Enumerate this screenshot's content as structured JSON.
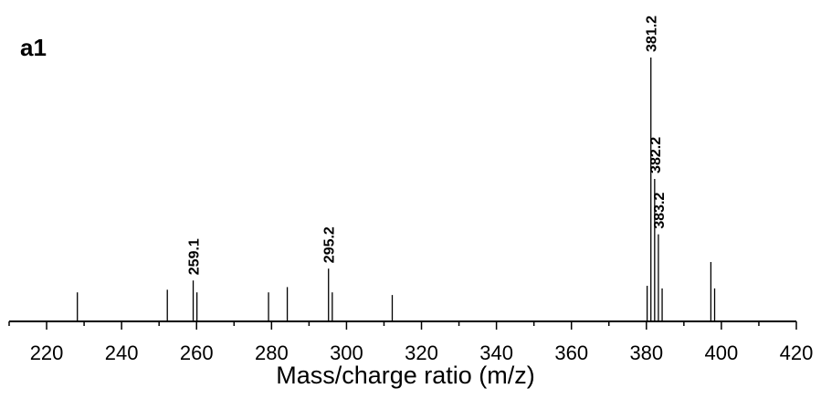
{
  "panel_label": "a1",
  "chart_data": {
    "type": "bar",
    "title": "",
    "xlabel": "Mass/charge ratio (m/z)",
    "ylabel": "",
    "xlim": [
      210,
      420
    ],
    "ylim": [
      0,
      100
    ],
    "grid": false,
    "x_ticks": [
      220,
      240,
      260,
      280,
      300,
      320,
      340,
      360,
      380,
      400,
      420
    ],
    "x_tick_labels": [
      "220",
      "240",
      "260",
      "280",
      "300",
      "320",
      "340",
      "360",
      "380",
      "400",
      "420"
    ],
    "peaks": [
      {
        "mz": 228.2,
        "intensity": 11,
        "label": ""
      },
      {
        "mz": 252.2,
        "intensity": 12,
        "label": ""
      },
      {
        "mz": 259.1,
        "intensity": 15.5,
        "label": "259.1"
      },
      {
        "mz": 260.1,
        "intensity": 11,
        "label": ""
      },
      {
        "mz": 279.2,
        "intensity": 11,
        "label": ""
      },
      {
        "mz": 284.2,
        "intensity": 13,
        "label": ""
      },
      {
        "mz": 295.2,
        "intensity": 20,
        "label": "295.2"
      },
      {
        "mz": 296.2,
        "intensity": 11,
        "label": ""
      },
      {
        "mz": 312.2,
        "intensity": 10,
        "label": ""
      },
      {
        "mz": 380.2,
        "intensity": 13.5,
        "label": ""
      },
      {
        "mz": 381.2,
        "intensity": 100,
        "label": "381.2"
      },
      {
        "mz": 382.2,
        "intensity": 54,
        "label": "382.2"
      },
      {
        "mz": 383.2,
        "intensity": 33,
        "label": "383.2"
      },
      {
        "mz": 384.2,
        "intensity": 12.5,
        "label": ""
      },
      {
        "mz": 397.2,
        "intensity": 22.5,
        "label": ""
      },
      {
        "mz": 398.2,
        "intensity": 12.5,
        "label": ""
      }
    ]
  }
}
